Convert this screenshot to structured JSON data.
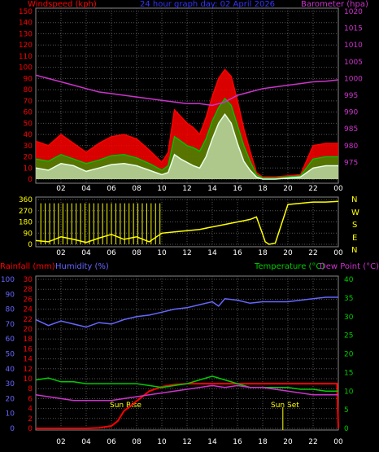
{
  "header": {
    "left_label": "Windspeed (kph)",
    "center_label": "24 hour graph day:  02 April 2026",
    "right_label": "Barometer (hpa)"
  },
  "colors": {
    "wind_gust": "#ff0000",
    "wind_avg": "#00c000",
    "wind_speed": "#e8ffe8",
    "barometer": "#cc33cc",
    "direction": "#ffff00",
    "temperature": "#00cc00",
    "dewpoint": "#cc33cc",
    "humidity": "#6666ff",
    "rainfall": "#ff0000",
    "grid": "#555555",
    "axis_windspeed": "#ff0000",
    "axis_barometer": "#cc33cc",
    "axis_rain": "#ff0000",
    "axis_humidity": "#6666ff",
    "axis_temp": "#00cc00"
  },
  "x_ticks": [
    "02",
    "04",
    "06",
    "08",
    "10",
    "12",
    "14",
    "16",
    "18",
    "20",
    "22",
    "00"
  ],
  "panel2": {
    "compass": [
      "N",
      "W",
      "S",
      "E",
      "N"
    ]
  },
  "panel3": {
    "rain_label": "Rainfall (mm)",
    "humidity_label": "Humidity (%)",
    "temp_label": "Temperature (°C)",
    "dew_label": "Dew Point (°C)",
    "sunrise_label": "Sun Rise",
    "sunset_label": "Sun Set"
  },
  "chart_data": [
    {
      "type": "line",
      "title": "24 hour graph day:  02 April 2026",
      "xlabel": "",
      "x_range": [
        0,
        24
      ],
      "y_left": {
        "label": "Windspeed (kph)",
        "range": [
          0,
          150
        ],
        "ticks": [
          0,
          10,
          20,
          30,
          40,
          50,
          60,
          70,
          80,
          90,
          100,
          110,
          120,
          130,
          140,
          150
        ]
      },
      "y_right": {
        "label": "Barometer (hpa)",
        "range": [
          970,
          1020
        ],
        "ticks": [
          975,
          980,
          985,
          990,
          995,
          1000,
          1005,
          1010,
          1015,
          1020
        ]
      },
      "series": [
        {
          "name": "Windspeed (kph) gust",
          "color": "#ff0000",
          "x": [
            0,
            1,
            2,
            3,
            4,
            5,
            6,
            7,
            8,
            9,
            10,
            10.5,
            11,
            11.5,
            12,
            12.5,
            13,
            13.5,
            14,
            14.5,
            15,
            15.5,
            16,
            16.5,
            17,
            17.5,
            18,
            19,
            20,
            21,
            22,
            23,
            24
          ],
          "y": [
            34,
            30,
            40,
            32,
            24,
            32,
            38,
            40,
            36,
            26,
            15,
            24,
            62,
            56,
            50,
            46,
            40,
            55,
            74,
            90,
            98,
            92,
            70,
            45,
            25,
            6,
            2,
            2,
            3,
            4,
            30,
            32,
            32
          ]
        },
        {
          "name": "Windspeed (kph) average",
          "color": "#00c000",
          "x": [
            0,
            1,
            2,
            3,
            4,
            5,
            6,
            7,
            8,
            9,
            10,
            10.5,
            11,
            11.5,
            12,
            12.5,
            13,
            13.5,
            14,
            14.5,
            15,
            15.5,
            16,
            16.5,
            17,
            17.5,
            18,
            19,
            20,
            21,
            22,
            23,
            24
          ],
          "y": [
            18,
            16,
            22,
            18,
            14,
            17,
            21,
            22,
            19,
            14,
            8,
            12,
            38,
            34,
            30,
            28,
            25,
            36,
            52,
            64,
            72,
            66,
            48,
            30,
            16,
            4,
            1,
            1,
            2,
            3,
            18,
            20,
            20
          ]
        },
        {
          "name": "Windspeed (kph) speed",
          "color": "#e8ffe8",
          "x": [
            0,
            1,
            2,
            3,
            4,
            5,
            6,
            7,
            8,
            9,
            10,
            10.5,
            11,
            11.5,
            12,
            12.5,
            13,
            13.5,
            14,
            14.5,
            15,
            15.5,
            16,
            16.5,
            17,
            17.5,
            18,
            19,
            20,
            21,
            22,
            23,
            24
          ],
          "y": [
            10,
            8,
            14,
            12,
            7,
            10,
            13,
            14,
            12,
            8,
            4,
            6,
            22,
            18,
            15,
            12,
            10,
            20,
            36,
            50,
            58,
            50,
            32,
            16,
            8,
            2,
            0,
            0,
            1,
            2,
            10,
            12,
            12
          ]
        },
        {
          "name": "Barometer (hpa)",
          "color": "#cc33cc",
          "axis": "right",
          "x": [
            0,
            1,
            2,
            3,
            4,
            5,
            6,
            7,
            8,
            9,
            10,
            11,
            12,
            13,
            14,
            15,
            16,
            17,
            18,
            19,
            20,
            21,
            22,
            23,
            24
          ],
          "y": [
            1001,
            1000,
            999,
            998,
            997,
            996,
            995.5,
            995,
            994.5,
            994,
            993.5,
            993,
            992.5,
            992.5,
            992,
            993,
            995,
            996,
            997,
            997.5,
            998,
            998.5,
            999,
            999.2,
            999.6
          ]
        }
      ]
    },
    {
      "type": "scatter",
      "title": "",
      "x_range": [
        0,
        24
      ],
      "y_left": {
        "label": "",
        "range": [
          0,
          360
        ],
        "ticks": [
          0,
          90,
          180,
          270,
          360
        ]
      },
      "series": [
        {
          "name": "",
          "color": "#ffff00",
          "x": [
            0,
            1,
            2,
            3,
            4,
            5,
            6,
            7,
            8,
            9,
            10,
            11,
            12,
            13,
            14,
            15,
            16,
            16.5,
            17,
            17.5,
            18,
            18.2,
            18.5,
            19,
            20,
            21,
            22,
            23,
            24
          ],
          "y": [
            30,
            20,
            60,
            40,
            15,
            50,
            80,
            40,
            60,
            20,
            90,
            100,
            110,
            120,
            140,
            160,
            180,
            190,
            200,
            220,
            80,
            20,
            0,
            10,
            320,
            330,
            340,
            340,
            345
          ]
        }
      ]
    },
    {
      "type": "line",
      "title": "",
      "x_range": [
        0,
        24
      ],
      "y_left_rain": {
        "label": "Rainfall (mm)",
        "range": [
          0,
          30
        ],
        "ticks": [
          0,
          2,
          4,
          6,
          8,
          10,
          12,
          14,
          16,
          18,
          20,
          22,
          24,
          26,
          28,
          30
        ]
      },
      "y_left_humidity": {
        "label": "Humidity (%)",
        "range": [
          0,
          100
        ],
        "ticks": [
          0,
          10,
          20,
          30,
          40,
          50,
          60,
          70,
          80,
          90,
          100
        ]
      },
      "y_right": {
        "label": "Temperature (°C)",
        "range": [
          0,
          40
        ],
        "ticks": [
          0,
          5,
          10,
          15,
          20,
          25,
          30,
          35,
          40
        ]
      },
      "annotations": [
        "Sun Rise",
        "Sun Set"
      ],
      "series": [
        {
          "name": "Rainfall (mm)",
          "color": "#ff0000",
          "axis": "rain",
          "x": [
            0,
            1,
            2,
            3,
            4,
            5,
            6,
            6.5,
            7,
            7.5,
            8,
            8.5,
            9,
            10,
            11,
            12,
            13,
            14,
            15,
            16,
            17,
            18,
            19,
            20,
            21,
            22,
            23,
            23.9,
            24
          ],
          "y": [
            0,
            0,
            0,
            0,
            0,
            0.1,
            0.5,
            1.5,
            3.5,
            4.5,
            5.5,
            6.5,
            7.5,
            8.4,
            8.8,
            9,
            9,
            9,
            9,
            9,
            9,
            9,
            9,
            9,
            9,
            9,
            9,
            9,
            0
          ]
        },
        {
          "name": "Humidity (%)",
          "color": "#6666ff",
          "axis": "humidity",
          "x": [
            0,
            1,
            2,
            3,
            4,
            5,
            6,
            7,
            8,
            9,
            10,
            11,
            12,
            13,
            14,
            14.5,
            15,
            16,
            17,
            18,
            19,
            20,
            21,
            22,
            23,
            24
          ],
          "y": [
            73,
            69,
            72,
            70,
            68,
            71,
            70,
            73,
            75,
            76,
            78,
            80,
            81,
            83,
            85,
            82,
            87,
            86,
            84,
            85,
            85,
            85,
            86,
            87,
            88,
            88
          ]
        },
        {
          "name": "Temperature (°C)",
          "color": "#00cc00",
          "axis": "right",
          "x": [
            0,
            1,
            2,
            3,
            4,
            5,
            6,
            7,
            8,
            9,
            10,
            11,
            12,
            13,
            14,
            15,
            16,
            17,
            18,
            19,
            20,
            21,
            22,
            23,
            24
          ],
          "y": [
            13,
            13.5,
            12.5,
            12.5,
            12,
            12,
            12,
            12,
            12,
            11.5,
            11,
            11.5,
            12,
            13,
            14,
            13,
            12,
            11,
            11,
            11,
            11,
            10.5,
            10.5,
            10,
            10
          ]
        },
        {
          "name": "Dew Point (°C)",
          "color": "#cc33cc",
          "axis": "right",
          "x": [
            0,
            1,
            2,
            3,
            4,
            5,
            6,
            7,
            8,
            9,
            10,
            11,
            12,
            13,
            14,
            15,
            16,
            17,
            18,
            19,
            20,
            21,
            22,
            23,
            24
          ],
          "y": [
            9,
            8.5,
            8,
            7.5,
            7.5,
            7.5,
            7.5,
            8,
            8.5,
            9,
            9.5,
            10,
            10.5,
            11,
            11.5,
            11,
            11.5,
            11,
            11,
            10.5,
            10,
            9.5,
            9,
            9,
            9
          ]
        }
      ]
    }
  ]
}
